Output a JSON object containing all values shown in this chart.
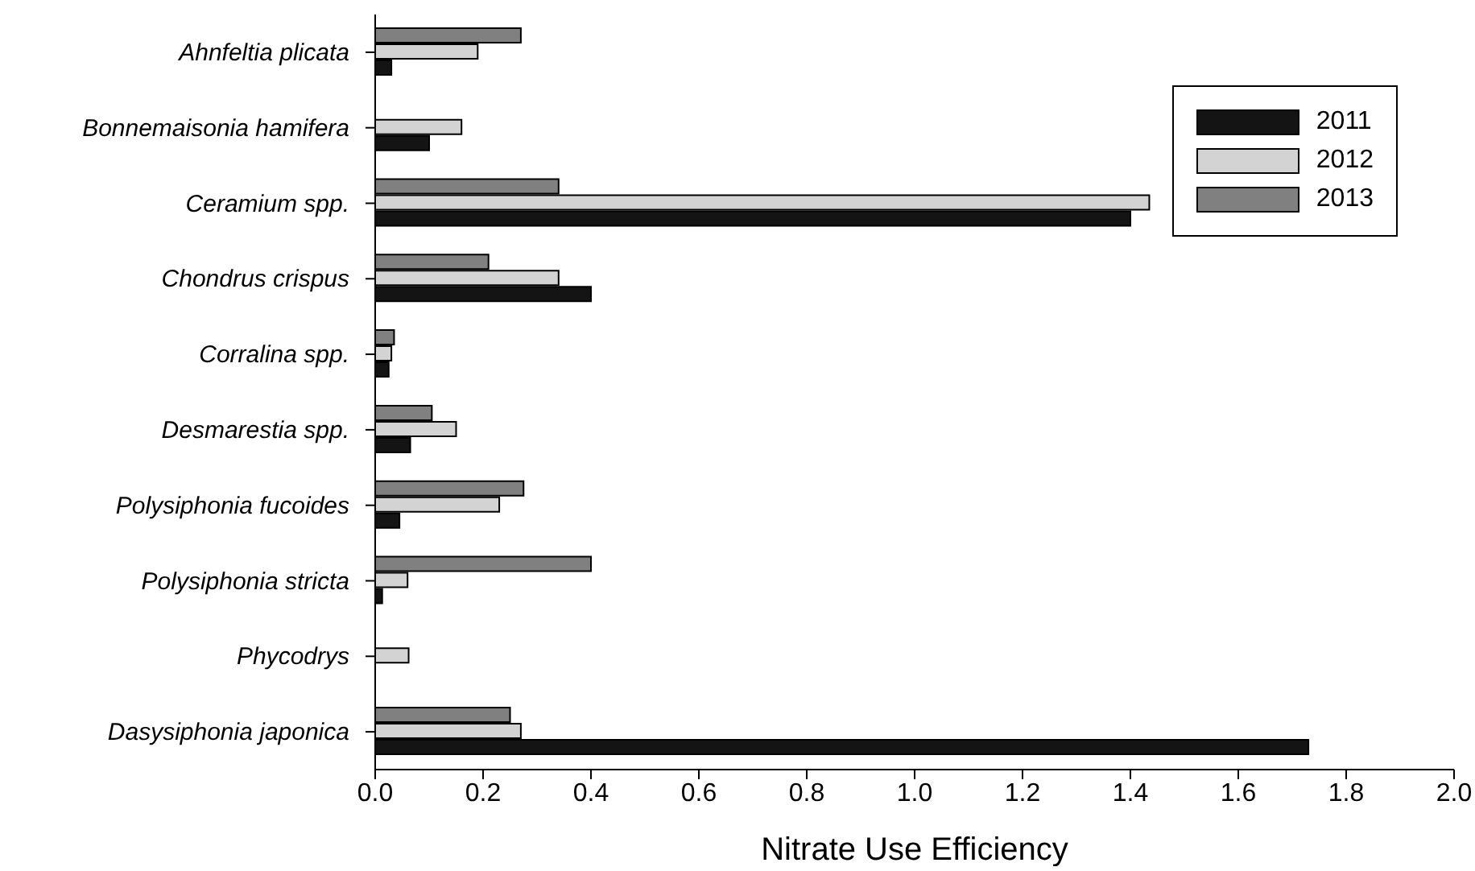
{
  "chart_data": {
    "type": "bar",
    "orientation": "horizontal",
    "xlabel": "Nitrate Use Efficiency",
    "categories": [
      "Ahnfeltia plicata",
      "Bonnemaisonia hamifera",
      "Ceramium spp.",
      "Chondrus crispus",
      "Corralina spp.",
      "Desmarestia spp.",
      "Polysiphonia fucoides",
      "Polysiphonia stricta",
      "Phycodrys",
      "Dasysiphonia japonica"
    ],
    "series": [
      {
        "name": "2011",
        "color": "#141414",
        "values": [
          0.03,
          0.1,
          1.4,
          0.4,
          0.025,
          0.065,
          0.045,
          0.013,
          null,
          1.73
        ]
      },
      {
        "name": "2012",
        "color": "#d3d3d3",
        "values": [
          0.19,
          0.16,
          1.435,
          0.34,
          0.03,
          0.15,
          0.23,
          0.06,
          0.062,
          0.27
        ]
      },
      {
        "name": "2013",
        "color": "#808080",
        "values": [
          0.27,
          null,
          0.34,
          0.21,
          0.035,
          0.105,
          0.275,
          0.4,
          null,
          0.25
        ]
      }
    ],
    "xlim": [
      0,
      2
    ],
    "xticks": [
      {
        "value": 0,
        "label": "0.0"
      },
      {
        "value": 0.2,
        "label": "0.2"
      },
      {
        "value": 0.4,
        "label": "0.4"
      },
      {
        "value": 0.6,
        "label": "0.6"
      },
      {
        "value": 0.8,
        "label": "0.8"
      },
      {
        "value": 1,
        "label": "1.0"
      },
      {
        "value": 1.2,
        "label": "1.2"
      },
      {
        "value": 1.4,
        "label": "1.4"
      },
      {
        "value": 1.6,
        "label": "1.6"
      },
      {
        "value": 1.8,
        "label": "1.8"
      },
      {
        "value": 2,
        "label": "2.0"
      }
    ],
    "grid": false,
    "legend": "top right"
  }
}
